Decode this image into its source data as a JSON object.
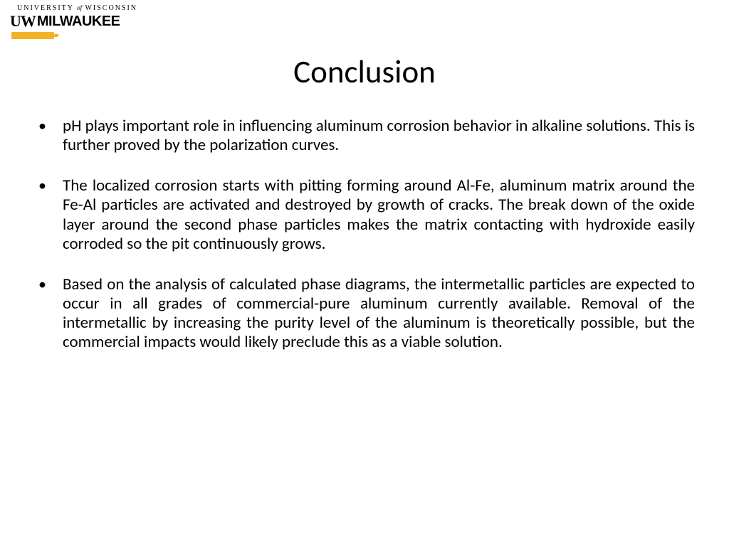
{
  "logo": {
    "top_line_pre": "UNIVERSITY",
    "top_line_of": "of",
    "top_line_post": "WISCONSIN",
    "uw": "UW",
    "milwaukee": "MILWAUKEE",
    "bar_color": "#f3b229"
  },
  "slide": {
    "title": "Conclusion",
    "title_fontsize": 45,
    "title_color": "#000000",
    "body_fontsize": 23,
    "body_color": "#000000",
    "background_color": "#ffffff",
    "bullets": [
      "pH plays important role in influencing aluminum corrosion behavior in alkaline solutions. This is further proved by the  polarization curves.",
      "The localized corrosion starts with pitting forming around Al-Fe, aluminum matrix around the Fe-Al particles are activated and destroyed by growth of cracks. The break down of the oxide layer around the second phase particles makes the matrix contacting with hydroxide easily corroded so the pit continuously grows.",
      "Based on the analysis of calculated phase diagrams, the intermetallic particles are expected to occur in all grades of commercial-pure aluminum currently available. Removal of the intermetallic by increasing the purity level of the aluminum is theoretically possible, but the commercial impacts would likely preclude this as a viable solution."
    ]
  }
}
